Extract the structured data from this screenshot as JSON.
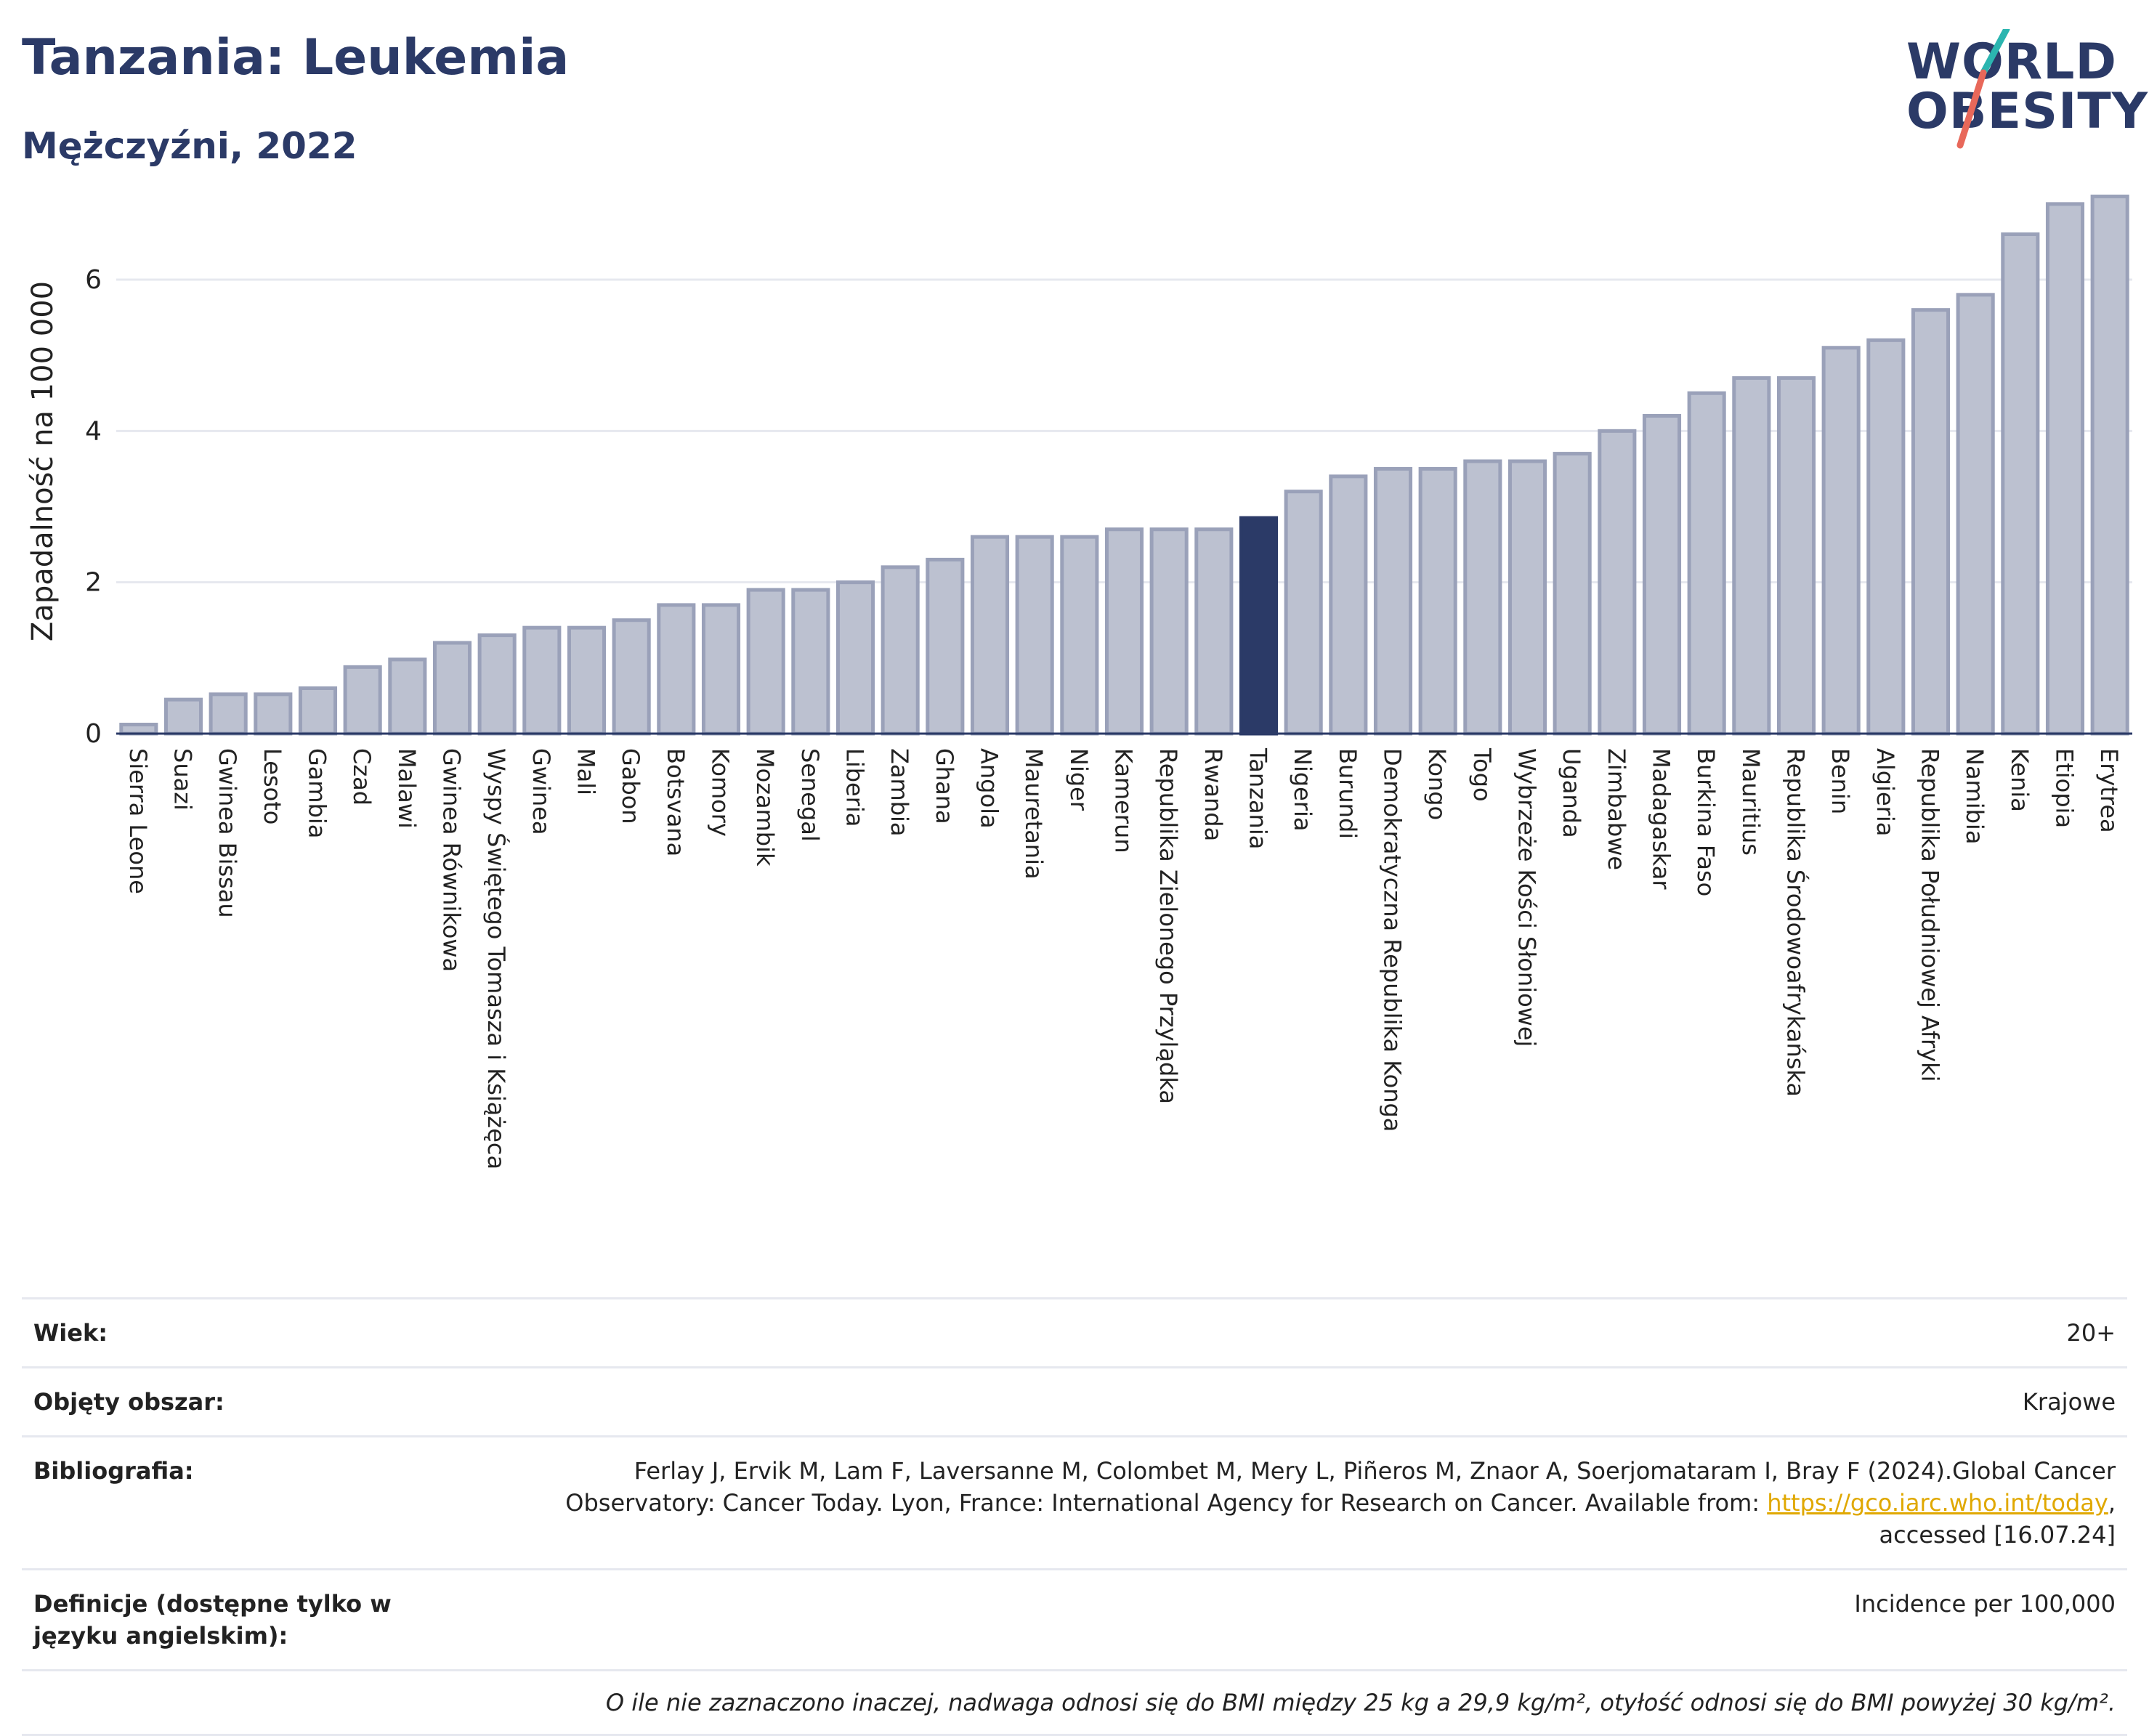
{
  "header": {
    "title": "Tanzania: Leukemia",
    "subtitle": "Mężczyźni, 2022"
  },
  "logo": {
    "line1": "WORLD",
    "line2": "OBESITY",
    "accent_colors": [
      "#2bb5b0",
      "#e8685a"
    ]
  },
  "colors": {
    "bar": "#bcc1d0",
    "bar_stroke": "#9aa1b9",
    "highlight": "#2b3a67",
    "grid": "#e6e8ef",
    "title": "#2b3a67"
  },
  "chart_data": {
    "type": "bar",
    "ylabel": "Zapadalność na 100 000",
    "ylim": [
      0,
      7.2
    ],
    "yticks": [
      0,
      2,
      4,
      6
    ],
    "grid": true,
    "highlight": "Tanzania",
    "categories": [
      "Sierra Leone",
      "Suazi",
      "Gwinea Bissau",
      "Lesoto",
      "Gambia",
      "Czad",
      "Malawi",
      "Gwinea Równikowa",
      "Wyspy Świętego Tomasza i Książęca",
      "Gwinea",
      "Mali",
      "Gabon",
      "Botsvana",
      "Komory",
      "Mozambik",
      "Senegal",
      "Liberia",
      "Zambia",
      "Ghana",
      "Angola",
      "Mauretania",
      "Niger",
      "Kamerun",
      "Republika Zielonego Przylądka",
      "Rwanda",
      "Tanzania",
      "Nigeria",
      "Burundi",
      "Demokratyczna Republika Konga",
      "Kongo",
      "Togo",
      "Wybrzeże Kości Słoniowej",
      "Uganda",
      "Zimbabwe",
      "Madagaskar",
      "Burkina Faso",
      "Mauritius",
      "Republika Środowoafrykańska",
      "Benin",
      "Algieria",
      "Republika Południowej Afryki",
      "Namibia",
      "Kenia",
      "Etiopia",
      "Erytrea"
    ],
    "values": [
      0.12,
      0.45,
      0.52,
      0.52,
      0.6,
      0.88,
      0.98,
      1.2,
      1.3,
      1.4,
      1.4,
      1.5,
      1.7,
      1.7,
      1.9,
      1.9,
      2.0,
      2.2,
      2.3,
      2.6,
      2.6,
      2.6,
      2.7,
      2.7,
      2.7,
      2.85,
      3.2,
      3.4,
      3.5,
      3.5,
      3.6,
      3.6,
      3.7,
      4.0,
      4.2,
      4.5,
      4.7,
      4.7,
      5.1,
      5.2,
      5.6,
      5.8,
      6.6,
      7.0,
      7.1
    ]
  },
  "meta": {
    "age_label": "Wiek:",
    "age_value": "20+",
    "area_label": "Objęty obszar:",
    "area_value": "Krajowe",
    "bib_label": "Bibliografia:",
    "bib_text": "Ferlay J, Ervik M, Lam F, Laversanne M, Colombet M, Mery L, Piñeros M, Znaor A, Soerjomataram I, Bray F (2024).Global Cancer Observatory: Cancer Today. Lyon, France: International Agency for Research on Cancer. Available from: ",
    "bib_link": "https://gco.iarc.who.int/today",
    "bib_tail": ", accessed [16.07.24]",
    "def_label": "Definicje (dostępne tylko w języku angielskim):",
    "def_value": "Incidence per 100,000",
    "note": "O ile nie zaznaczono inaczej, nadwaga odnosi się do BMI między 25 kg a 29,9 kg/m², otyłość odnosi się do BMI powyżej 30 kg/m²."
  }
}
